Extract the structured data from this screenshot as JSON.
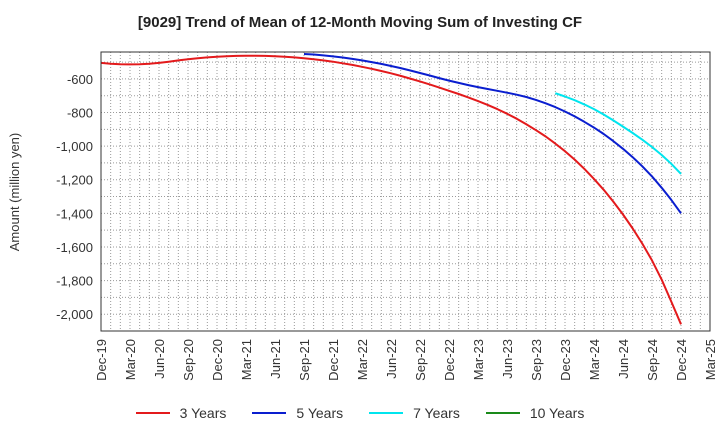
{
  "chart_data": {
    "type": "line",
    "title": "[9029]  Trend of Mean of 12-Month Moving Sum of Investing CF",
    "xlabel": "",
    "ylabel": "Amount (million yen)",
    "ylim": [
      -2100,
      -440
    ],
    "yticks": [
      -600,
      -800,
      -1000,
      -1200,
      -1400,
      -1600,
      -1800,
      -2000
    ],
    "ytick_labels": [
      "-600",
      "-800",
      "-1,000",
      "-1,200",
      "-1,400",
      "-1,600",
      "-1,800",
      "-2,000"
    ],
    "x_tick_labels": [
      "Dec-19",
      "Mar-20",
      "Jun-20",
      "Sep-20",
      "Dec-20",
      "Mar-21",
      "Jun-21",
      "Sep-21",
      "Dec-21",
      "Mar-22",
      "Jun-22",
      "Sep-22",
      "Dec-22",
      "Mar-23",
      "Jun-23",
      "Sep-23",
      "Dec-23",
      "Mar-24",
      "Jun-24",
      "Sep-24",
      "Dec-24",
      "Mar-25"
    ],
    "legend_position": "bottom",
    "grid": true,
    "series": [
      {
        "name": "3 Years",
        "color": "#e31a1c",
        "start_index": 0,
        "values": [
          -505,
          -510,
          -513,
          -514,
          -513,
          -510,
          -505,
          -498,
          -490,
          -483,
          -477,
          -472,
          -468,
          -465,
          -463,
          -462,
          -462,
          -463,
          -465,
          -468,
          -472,
          -477,
          -483,
          -490,
          -498,
          -507,
          -517,
          -528,
          -540,
          -553,
          -567,
          -582,
          -598,
          -615,
          -633,
          -652,
          -671,
          -690,
          -710,
          -732,
          -755,
          -780,
          -807,
          -837,
          -870,
          -905,
          -943,
          -985,
          -1030,
          -1080,
          -1135,
          -1195,
          -1260,
          -1330,
          -1407,
          -1490,
          -1580,
          -1680,
          -1795,
          -1925,
          -2060
        ]
      },
      {
        "name": "5 Years",
        "color": "#0a1ecf",
        "start_index": 21,
        "values": [
          -452,
          -455,
          -460,
          -466,
          -473,
          -481,
          -490,
          -500,
          -511,
          -523,
          -536,
          -550,
          -565,
          -580,
          -595,
          -610,
          -624,
          -637,
          -649,
          -660,
          -671,
          -682,
          -694,
          -708,
          -725,
          -745,
          -768,
          -794,
          -823,
          -855,
          -890,
          -928,
          -970,
          -1016,
          -1066,
          -1120,
          -1180,
          -1248,
          -1320,
          -1400
        ]
      },
      {
        "name": "7 Years",
        "color": "#00e5ee",
        "start_index": 47,
        "values": [
          -685,
          -705,
          -727,
          -752,
          -780,
          -812,
          -847,
          -884,
          -922,
          -962,
          -1005,
          -1053,
          -1105,
          -1165
        ]
      },
      {
        "name": "10 Years",
        "color": "#1a8a1a",
        "start_index": 0,
        "values": []
      }
    ]
  }
}
